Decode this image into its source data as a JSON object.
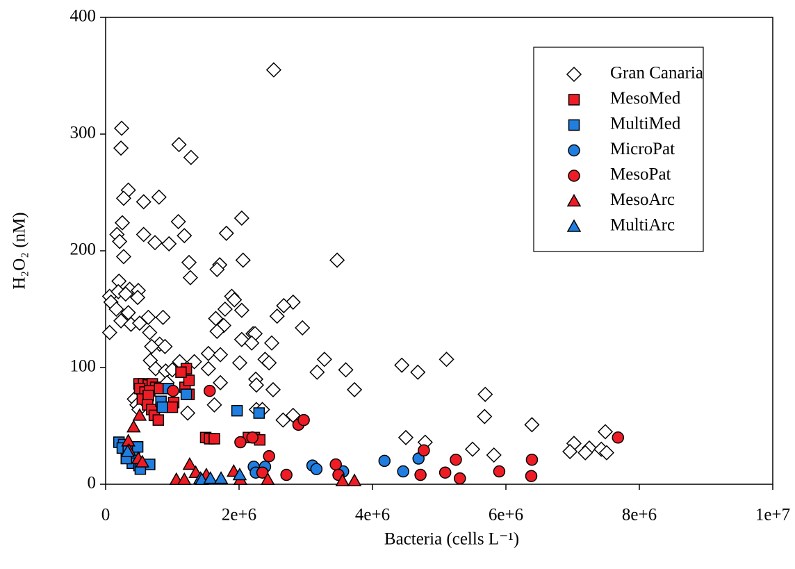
{
  "chart_data": {
    "type": "scatter",
    "xlabel": "Bacteria (cells L⁻¹)",
    "ylabel": "H₂O₂ (nM)",
    "xlim": [
      0,
      10000000
    ],
    "ylim": [
      0,
      400
    ],
    "xticks": [
      0,
      {
        "value": 2000000,
        "label": "2e+6"
      },
      {
        "value": 4000000,
        "label": "4e+6"
      },
      {
        "value": 6000000,
        "label": "6e+6"
      },
      {
        "value": 8000000,
        "label": "8e+6"
      },
      {
        "value": 10000000,
        "label": "1e+7"
      }
    ],
    "yticks": [
      0,
      100,
      200,
      300,
      400
    ],
    "grid": false,
    "legend": "upper right",
    "edge_color": "#000000",
    "series": [
      {
        "name": "Gran Canaria",
        "color": "#ffffff",
        "marker": "diamond",
        "x": [
          2520000.0,
          240000.0,
          230000.0,
          1100000.0,
          1280000.0,
          340000.0,
          270000.0,
          570000.0,
          800000.0,
          250000.0,
          1090000.0,
          2040000.0,
          170000.0,
          570000.0,
          1180000.0,
          1810000.0,
          210000.0,
          740000.0,
          950000.0,
          270000.0,
          2060000.0,
          3470000.0,
          1250000.0,
          1710000.0,
          1670000.0,
          1270000.0,
          200000.0,
          60000.0,
          190000.0,
          360000.0,
          490000.0,
          480000.0,
          300000.0,
          1890000.0,
          80000.0,
          160000.0,
          340000.0,
          1930000.0,
          2810000.0,
          2670000.0,
          860000.0,
          640000.0,
          1650000.0,
          1790000.0,
          2570000.0,
          2040000.0,
          230000.0,
          380000.0,
          510000.0,
          1770000.0,
          60000.0,
          660000.0,
          1670000.0,
          2210000.0,
          2950000.0,
          810000.0,
          890000.0,
          690000.0,
          2040000.0,
          2240000.0,
          2190000.0,
          2490000.0,
          1540000.0,
          1720000.0,
          1330000.0,
          670000.0,
          1110000.0,
          2390000.0,
          2450000.0,
          3280000.0,
          2010000.0,
          750000.0,
          1540000.0,
          900000.0,
          1000000.0,
          3170000.0,
          3600000.0,
          4440000.0,
          4680000.0,
          5110000.0,
          2250000.0,
          2260000.0,
          1720000.0,
          3730000.0,
          2510000.0,
          920000.0,
          430000.0,
          470000.0,
          1630000.0,
          5690000.0,
          2260000.0,
          2350000.0,
          500000.0,
          1230000.0,
          2810000.0,
          2660000.0,
          5680000.0,
          6390000.0,
          7490000.0,
          7020000.0,
          4500000.0,
          4790000.0,
          5500000.0,
          7250000.0,
          7430000.0,
          6960000.0,
          7190000.0,
          7510000.0,
          5820000.0
        ],
        "y": [
          355,
          305,
          288,
          291,
          280,
          252,
          245,
          242,
          246,
          224,
          225,
          228,
          214,
          214,
          213,
          215,
          208,
          207,
          206,
          195,
          192,
          192,
          190,
          188,
          184,
          177,
          174,
          161,
          165,
          167,
          166,
          160,
          163,
          161,
          156,
          150,
          147,
          158,
          156,
          153,
          143,
          143,
          142,
          150,
          144,
          149,
          140,
          137,
          138,
          136,
          130,
          130,
          131,
          129,
          134,
          120,
          118,
          118,
          124,
          129,
          121,
          121,
          112,
          111,
          105,
          106,
          105,
          107,
          104,
          107,
          104,
          99,
          99,
          97,
          98,
          96,
          98,
          102,
          96,
          107,
          90,
          85,
          87,
          81,
          81,
          87,
          73,
          68,
          68,
          77,
          64,
          64,
          64,
          61,
          59,
          55,
          58,
          51,
          45,
          35,
          40,
          36,
          30,
          31,
          30,
          28,
          27,
          27,
          25
        ]
      },
      {
        "name": "MesoMed",
        "color": "#ee1c25",
        "marker": "square",
        "x": [
          500000.0,
          570000.0,
          640000.0,
          700000.0,
          750000.0,
          510000.0,
          590000.0,
          660000.0,
          810000.0,
          550000.0,
          640000.0,
          630000.0,
          690000.0,
          730000.0,
          790000.0,
          1020000.0,
          1000000.0,
          1190000.0,
          1210000.0,
          1250000.0,
          1250000.0,
          1130000.0,
          1500000.0,
          1560000.0,
          1630000.0,
          2230000.0,
          2310000.0,
          2140000.0
        ],
        "y": [
          86,
          86,
          85,
          86,
          83,
          82,
          79,
          80,
          82,
          73,
          76,
          68,
          64,
          59,
          55,
          70,
          66,
          83,
          99,
          89,
          77,
          96,
          40,
          39,
          39,
          40,
          38,
          40
        ]
      },
      {
        "name": "MultiMed",
        "color": "#1f7ee0",
        "marker": "square",
        "x": [
          940000.0,
          1210000.0,
          830000.0,
          850000.0,
          1970000.0,
          2300000.0,
          200000.0,
          270000.0,
          250000.0,
          340000.0,
          430000.0,
          480000.0,
          400000.0,
          500000.0,
          660000.0,
          520000.0,
          310000.0
        ],
        "y": [
          82,
          77,
          71,
          66,
          63,
          61,
          36,
          34,
          31,
          29,
          25,
          32,
          18,
          16,
          17,
          13,
          22
        ]
      },
      {
        "name": "MicroPat",
        "color": "#1f7ee0",
        "marker": "circle",
        "x": [
          2220000.0,
          2390000.0,
          3100000.0,
          3160000.0,
          3520000.0,
          3560000.0,
          4180000.0,
          4460000.0,
          4690000.0,
          2250000.0
        ],
        "y": [
          15,
          15,
          16,
          13,
          10,
          11,
          20,
          11,
          22,
          10
        ]
      },
      {
        "name": "MesoPat",
        "color": "#ee1c25",
        "marker": "circle",
        "x": [
          1560000.0,
          2020000.0,
          2200000.0,
          2450000.0,
          2350000.0,
          2710000.0,
          2890000.0,
          2970000.0,
          3450000.0,
          3490000.0,
          4770000.0,
          4720000.0,
          5090000.0,
          5250000.0,
          5310000.0,
          5900000.0,
          6390000.0,
          6380000.0,
          7680000.0,
          1010000.0
        ],
        "y": [
          80,
          36,
          40,
          24,
          10,
          8,
          51,
          55,
          17,
          8,
          29,
          8,
          10,
          21,
          5,
          11,
          21,
          7,
          40,
          80
        ]
      },
      {
        "name": "MesoArc",
        "color": "#ee1c25",
        "marker": "triangle",
        "x": [
          340000.0,
          420000.0,
          510000.0,
          350000.0,
          490000.0,
          550000.0,
          1060000.0,
          1180000.0,
          1260000.0,
          1350000.0,
          1920000.0,
          2020000.0,
          2430000.0,
          3550000.0,
          3730000.0,
          1510000.0
        ],
        "y": [
          37,
          49,
          59,
          29,
          22,
          19,
          4,
          4,
          17,
          10,
          11,
          4,
          4,
          3,
          3,
          8
        ]
      },
      {
        "name": "MultiArc",
        "color": "#1f7ee0",
        "marker": "triangle",
        "x": [
          330000.0,
          1420000.0,
          1440000.0,
          1570000.0,
          1730000.0,
          2010000.0
        ],
        "y": [
          28,
          5,
          4,
          5,
          5,
          8
        ]
      }
    ]
  }
}
